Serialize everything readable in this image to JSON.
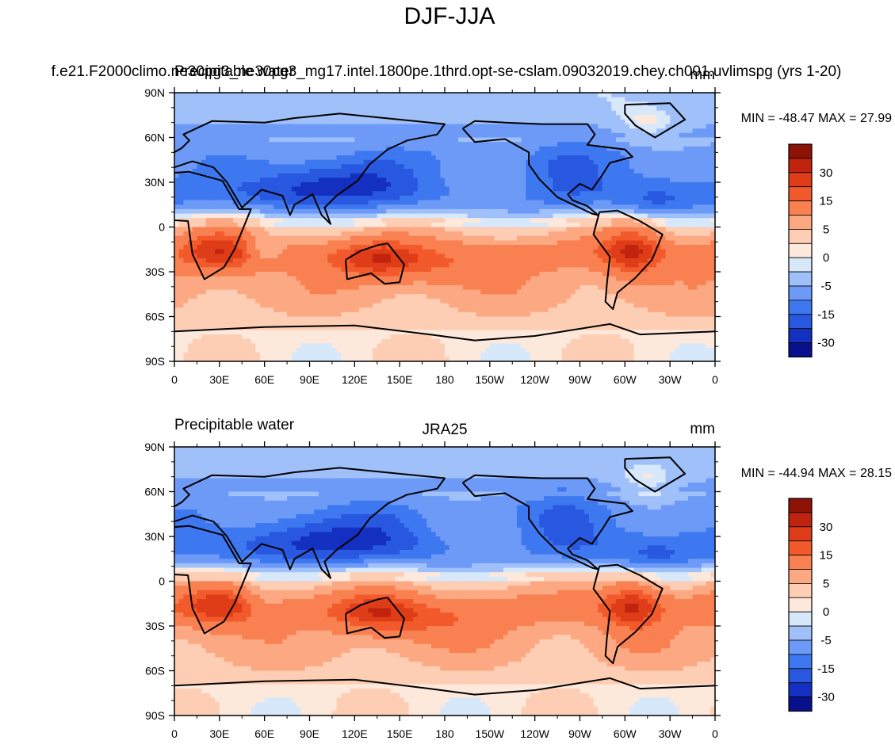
{
  "figure_title": "DJF-JJA",
  "colors": {
    "levels": [
      "#08108c",
      "#1430c0",
      "#2858e0",
      "#3e78f0",
      "#6c9af6",
      "#a0c0fa",
      "#d8e8fb",
      "#fde9dc",
      "#fdcdb4",
      "#fca882",
      "#f98050",
      "#f25a2c",
      "#de3d18",
      "#c0240e",
      "#8e1206"
    ],
    "land_outline": "#000000"
  },
  "colorbar": {
    "labels": [
      "30",
      "15",
      "5",
      "0",
      "-5",
      "-15",
      "-30"
    ]
  },
  "chart_data": [
    {
      "type": "heatmap",
      "left_label": "",
      "center_label": "f.e21.F2000climo.ne30pg3_ne30pg3_mg17.intel.1800pe.1thrd.opt-se-cslam.09032019.chey.ch001.uvlimspg (yrs 1-20)",
      "overlap_label": "Precipitable water",
      "units": "mm",
      "stats": "MIN = -48.47 MAX =  27.99",
      "x_ticks": [
        "0",
        "30E",
        "60E",
        "90E",
        "120E",
        "150E",
        "180",
        "150W",
        "120W",
        "90W",
        "60W",
        "30W",
        "0"
      ],
      "y_ticks": [
        "90N",
        "60N",
        "30N",
        "0",
        "30S",
        "60S",
        "90S"
      ],
      "lon_range": [
        0,
        360
      ],
      "lat_range": [
        -90,
        90
      ],
      "min": -48.47,
      "max": 27.99
    },
    {
      "type": "heatmap",
      "left_label": "Precipitable water",
      "center_label": "JRA25",
      "units": "mm",
      "stats": "MIN = -44.94 MAX =  28.15",
      "x_ticks": [
        "0",
        "30E",
        "60E",
        "90E",
        "120E",
        "150E",
        "180",
        "150W",
        "120W",
        "90W",
        "60W",
        "30W",
        "0"
      ],
      "y_ticks": [
        "90N",
        "60N",
        "30N",
        "0",
        "30S",
        "60S",
        "90S"
      ],
      "lon_range": [
        0,
        360
      ],
      "lat_range": [
        -90,
        90
      ],
      "min": -44.94,
      "max": 28.15
    }
  ]
}
